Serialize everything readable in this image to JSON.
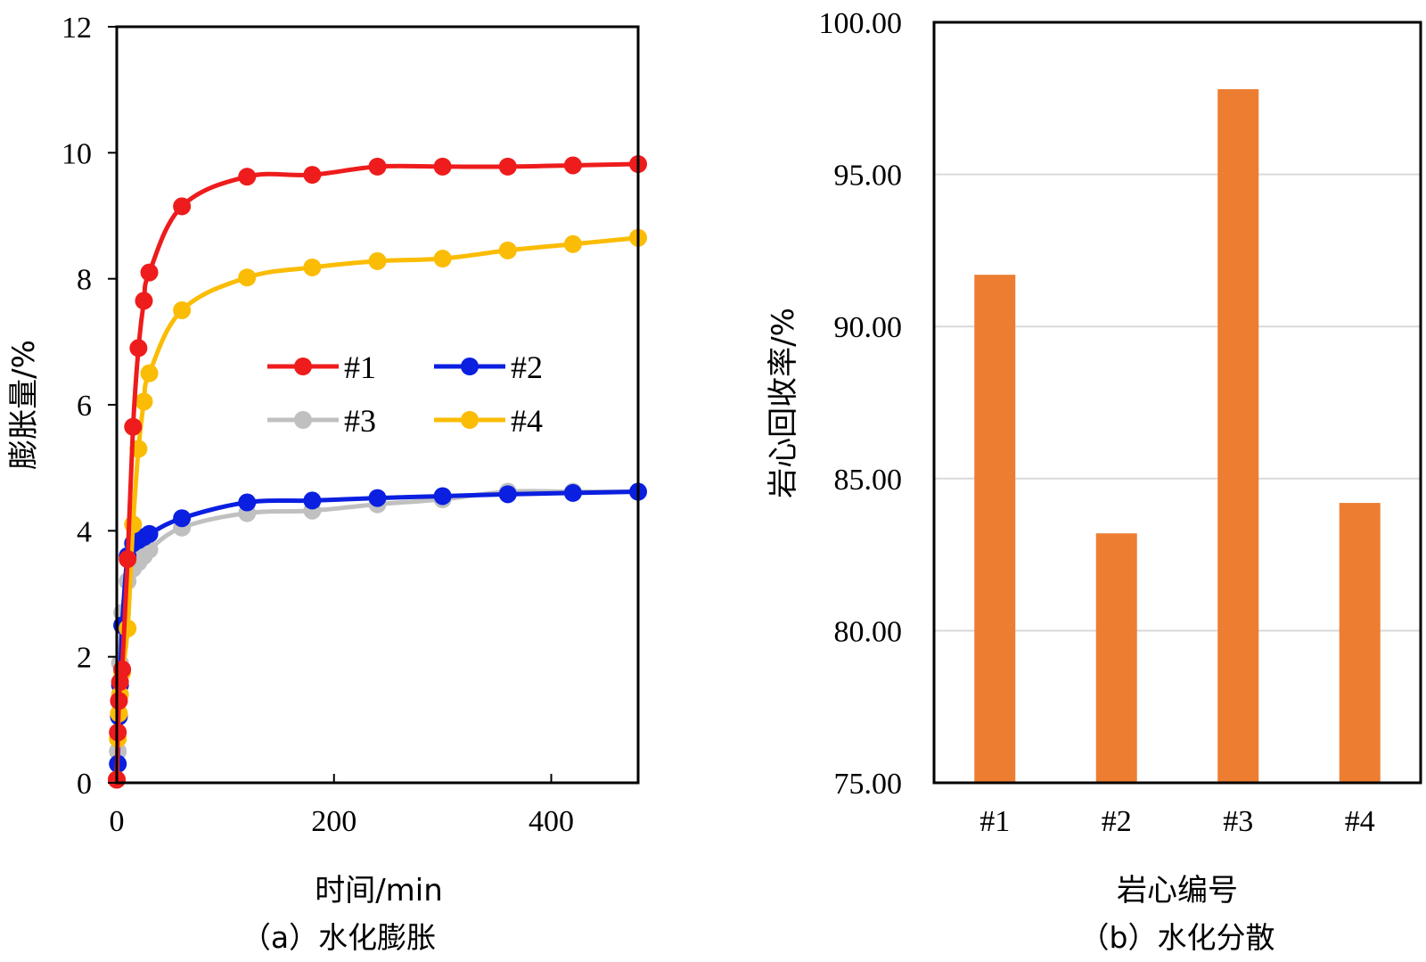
{
  "chart_data": [
    {
      "type": "line",
      "x": [
        0,
        1,
        2,
        3,
        5,
        10,
        15,
        20,
        25,
        30,
        60,
        120,
        180,
        240,
        300,
        360,
        420,
        480
      ],
      "series": [
        {
          "name": "#1",
          "color": "#ee1c1c",
          "values": [
            0.05,
            0.8,
            1.3,
            1.6,
            1.8,
            3.55,
            5.65,
            6.9,
            7.65,
            8.1,
            9.15,
            9.62,
            9.65,
            9.78,
            9.78,
            9.78,
            9.8,
            9.82
          ]
        },
        {
          "name": "#2",
          "color": "#0a1fe0",
          "values": [
            0.05,
            0.3,
            1.05,
            1.55,
            2.5,
            3.6,
            3.8,
            3.85,
            3.9,
            3.95,
            4.2,
            4.45,
            4.48,
            4.52,
            4.55,
            4.58,
            4.6,
            4.62
          ]
        },
        {
          "name": "#3",
          "color": "#c0c0c0",
          "values": [
            0.05,
            0.5,
            1.3,
            1.9,
            2.7,
            3.2,
            3.4,
            3.5,
            3.6,
            3.7,
            4.05,
            4.28,
            4.32,
            4.42,
            4.5,
            4.62,
            4.62,
            4.62
          ]
        },
        {
          "name": "#4",
          "color": "#fbbc05",
          "values": [
            0.05,
            0.7,
            1.1,
            1.4,
            1.75,
            2.45,
            4.1,
            5.3,
            6.05,
            6.5,
            7.5,
            8.02,
            8.18,
            8.28,
            8.32,
            8.45,
            8.55,
            8.65
          ]
        }
      ],
      "title": "",
      "xlabel": "时间/min",
      "ylabel": "膨胀量/%",
      "xlim": [
        0,
        480
      ],
      "ylim": [
        0,
        12
      ],
      "xticks": [
        "0",
        "200",
        "400"
      ],
      "yticks": [
        "0",
        "2",
        "4",
        "6",
        "8",
        "10",
        "12"
      ],
      "legend": "center",
      "grid": false,
      "caption": "（a）水化膨胀"
    },
    {
      "type": "bar",
      "categories": [
        "#1",
        "#2",
        "#3",
        "#4"
      ],
      "values": [
        91.7,
        83.2,
        97.8,
        84.2
      ],
      "color": "#ed7d31",
      "title": "",
      "xlabel": "岩心编号",
      "ylabel": "岩心回收率/%",
      "ylim": [
        75,
        100
      ],
      "yticks": [
        "75.00",
        "80.00",
        "85.00",
        "90.00",
        "95.00",
        "100.00"
      ],
      "grid": true,
      "caption": "（b）水化分散"
    }
  ]
}
